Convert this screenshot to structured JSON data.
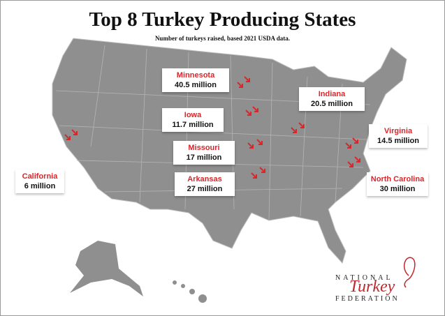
{
  "header": {
    "title": "Top 8 Turkey Producing States",
    "subtitle": "Number of turkeys raised, based 2021 USDA data."
  },
  "states": [
    {
      "name": "Minnesota",
      "value": "40.5 million"
    },
    {
      "name": "Iowa",
      "value": "11.7 million"
    },
    {
      "name": "Missouri",
      "value": "17 million"
    },
    {
      "name": "Arkansas",
      "value": "27 million"
    },
    {
      "name": "Indiana",
      "value": "20.5 million"
    },
    {
      "name": "Virginia",
      "value": "14.5 million"
    },
    {
      "name": "California",
      "value": "6 million"
    },
    {
      "name": "North Carolina",
      "value": "30 million"
    }
  ],
  "logo": {
    "top": "NATIONAL",
    "middle": "Turkey",
    "bottom": "FEDERATION"
  }
}
